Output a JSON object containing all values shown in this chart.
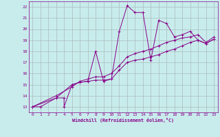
{
  "background_color": "#c8ecec",
  "grid_color": "#aabbbb",
  "line_color": "#880088",
  "xlabel": "Windchill (Refroidissement éolien,°C)",
  "xlim": [
    -0.5,
    23.5
  ],
  "ylim": [
    12.5,
    22.5
  ],
  "yticks": [
    13,
    14,
    15,
    16,
    17,
    18,
    19,
    20,
    21,
    22
  ],
  "xticks": [
    0,
    1,
    2,
    3,
    4,
    5,
    6,
    7,
    8,
    9,
    10,
    11,
    12,
    13,
    14,
    15,
    16,
    17,
    18,
    19,
    20,
    21,
    22,
    23
  ],
  "s1_x": [
    0,
    1,
    3,
    4,
    4,
    5,
    6,
    7,
    8,
    9,
    10,
    11,
    12,
    13,
    14,
    15,
    16,
    17,
    18,
    19,
    20,
    21,
    22,
    23
  ],
  "s1_y": [
    13.0,
    13.0,
    13.8,
    13.8,
    13.0,
    15.0,
    15.2,
    15.3,
    18.0,
    15.3,
    15.5,
    19.8,
    22.1,
    21.5,
    21.5,
    17.2,
    20.8,
    20.5,
    19.3,
    19.5,
    19.8,
    19.0,
    18.7,
    19.1
  ],
  "s2_x": [
    0,
    3,
    5,
    6,
    7,
    8,
    9,
    10,
    11,
    12,
    13,
    14,
    15,
    16,
    17,
    18,
    19,
    20,
    21,
    22,
    23
  ],
  "s2_y": [
    13.0,
    13.8,
    15.0,
    15.2,
    15.3,
    15.4,
    15.4,
    15.5,
    16.3,
    17.0,
    17.2,
    17.3,
    17.5,
    17.7,
    18.0,
    18.2,
    18.5,
    18.8,
    19.0,
    18.7,
    19.1
  ],
  "s3_x": [
    0,
    3,
    5,
    6,
    7,
    8,
    9,
    10,
    11,
    12,
    13,
    14,
    15,
    16,
    17,
    18,
    19,
    20,
    21,
    22,
    23
  ],
  "s3_y": [
    13.0,
    14.0,
    14.8,
    15.3,
    15.5,
    15.7,
    15.7,
    16.0,
    16.7,
    17.5,
    17.8,
    18.0,
    18.2,
    18.5,
    18.8,
    19.0,
    19.2,
    19.3,
    19.5,
    18.8,
    19.3
  ]
}
